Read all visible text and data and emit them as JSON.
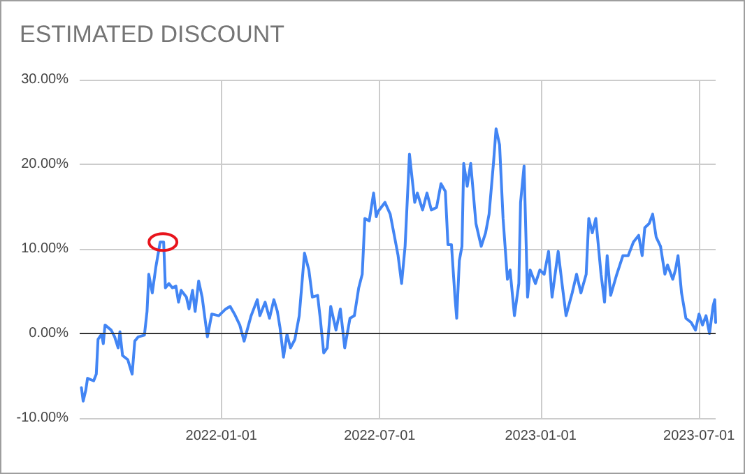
{
  "chart_data": {
    "type": "line",
    "title": "ESTIMATED DISCOUNT",
    "x": [
      "2021-07-25",
      "2021-07-27",
      "2021-07-30",
      "2021-08-01",
      "2021-08-08",
      "2021-08-11",
      "2021-08-13",
      "2021-08-17",
      "2021-08-19",
      "2021-08-21",
      "2021-08-28",
      "2021-09-01",
      "2021-09-05",
      "2021-09-07",
      "2021-09-10",
      "2021-09-16",
      "2021-09-21",
      "2021-09-24",
      "2021-09-28",
      "2021-10-05",
      "2021-10-08",
      "2021-10-10",
      "2021-10-14",
      "2021-10-18",
      "2021-10-23",
      "2021-10-27",
      "2021-10-29",
      "2021-11-02",
      "2021-11-06",
      "2021-11-10",
      "2021-11-13",
      "2021-11-16",
      "2021-11-22",
      "2021-11-25",
      "2021-11-29",
      "2021-12-02",
      "2021-12-06",
      "2021-12-10",
      "2021-12-16",
      "2021-12-21",
      "2021-12-29",
      "2022-01-06",
      "2022-01-11",
      "2022-01-16",
      "2022-01-22",
      "2022-01-27",
      "2022-02-04",
      "2022-02-11",
      "2022-02-14",
      "2022-02-20",
      "2022-02-25",
      "2022-03-02",
      "2022-03-06",
      "2022-03-09",
      "2022-03-13",
      "2022-03-17",
      "2022-03-21",
      "2022-03-26",
      "2022-03-31",
      "2022-04-06",
      "2022-04-11",
      "2022-04-15",
      "2022-04-21",
      "2022-04-24",
      "2022-04-28",
      "2022-05-02",
      "2022-05-06",
      "2022-05-12",
      "2022-05-17",
      "2022-05-22",
      "2022-05-28",
      "2022-06-02",
      "2022-06-07",
      "2022-06-11",
      "2022-06-14",
      "2022-06-19",
      "2022-06-24",
      "2022-06-27",
      "2022-06-29",
      "2022-07-07",
      "2022-07-13",
      "2022-07-18",
      "2022-07-22",
      "2022-07-26",
      "2022-07-30",
      "2022-08-04",
      "2022-08-10",
      "2022-08-13",
      "2022-08-19",
      "2022-08-24",
      "2022-08-29",
      "2022-09-04",
      "2022-09-09",
      "2022-09-14",
      "2022-09-17",
      "2022-09-21",
      "2022-09-25",
      "2022-09-27",
      "2022-09-30",
      "2022-10-03",
      "2022-10-05",
      "2022-10-09",
      "2022-10-13",
      "2022-10-19",
      "2022-10-25",
      "2022-10-30",
      "2022-11-03",
      "2022-11-08",
      "2022-11-11",
      "2022-11-15",
      "2022-11-19",
      "2022-11-24",
      "2022-11-27",
      "2022-12-02",
      "2022-12-07",
      "2022-12-09",
      "2022-12-13",
      "2022-12-17",
      "2022-12-20",
      "2022-12-26",
      "2022-12-31",
      "2023-01-05",
      "2023-01-10",
      "2023-01-14",
      "2023-01-21",
      "2023-01-26",
      "2023-01-30",
      "2023-02-06",
      "2023-02-11",
      "2023-02-16",
      "2023-02-22",
      "2023-02-25",
      "2023-03-01",
      "2023-03-05",
      "2023-03-11",
      "2023-03-15",
      "2023-03-18",
      "2023-03-22",
      "2023-03-29",
      "2023-04-05",
      "2023-04-11",
      "2023-04-17",
      "2023-04-23",
      "2023-04-27",
      "2023-04-30",
      "2023-05-05",
      "2023-05-09",
      "2023-05-13",
      "2023-05-18",
      "2023-05-23",
      "2023-05-26",
      "2023-06-01",
      "2023-06-04",
      "2023-06-07",
      "2023-06-11",
      "2023-06-16",
      "2023-06-22",
      "2023-06-27",
      "2023-07-01",
      "2023-07-05",
      "2023-07-09",
      "2023-07-13",
      "2023-07-17",
      "2023-07-19",
      "2023-07-20"
    ],
    "series": [
      {
        "color": "#4285f4",
        "values": [
          -6.4,
          -8.0,
          -6.7,
          -5.3,
          -5.6,
          -4.8,
          -0.7,
          -0.1,
          -1.2,
          1.0,
          0.4,
          -0.4,
          -1.7,
          0.2,
          -2.6,
          -3.1,
          -4.8,
          -0.9,
          -0.4,
          -0.2,
          2.6,
          7.0,
          4.8,
          7.8,
          10.8,
          10.8,
          5.4,
          5.9,
          5.4,
          5.6,
          3.7,
          5.1,
          4.3,
          2.9,
          5.1,
          2.6,
          6.2,
          4.3,
          -0.4,
          2.3,
          2.1,
          2.9,
          3.2,
          2.3,
          1.0,
          -0.9,
          2.1,
          4.0,
          2.1,
          3.7,
          1.8,
          4.0,
          2.6,
          0.7,
          -2.8,
          -0.1,
          -1.7,
          -0.7,
          2.1,
          9.5,
          7.5,
          4.3,
          4.5,
          1.8,
          -2.3,
          -1.7,
          3.2,
          0.4,
          2.9,
          -1.7,
          1.8,
          2.1,
          5.4,
          7.0,
          13.6,
          13.3,
          16.6,
          13.8,
          14.4,
          15.5,
          14.1,
          11.4,
          9.2,
          5.9,
          10.3,
          21.2,
          15.5,
          16.6,
          14.6,
          16.6,
          14.6,
          14.9,
          17.7,
          16.8,
          10.5,
          10.5,
          4.3,
          1.8,
          8.6,
          10.3,
          20.1,
          17.4,
          20.1,
          13.0,
          10.3,
          11.9,
          14.1,
          20.1,
          24.2,
          22.3,
          13.6,
          6.4,
          7.5,
          2.1,
          5.9,
          15.5,
          19.8,
          4.3,
          7.5,
          5.9,
          7.5,
          7.0,
          9.7,
          4.3,
          9.7,
          5.4,
          2.1,
          4.8,
          7.0,
          4.8,
          7.0,
          13.6,
          11.9,
          13.6,
          7.0,
          3.7,
          9.2,
          4.5,
          7.0,
          9.2,
          9.2,
          10.8,
          11.6,
          9.2,
          12.5,
          13.0,
          14.1,
          11.4,
          10.3,
          7.0,
          8.1,
          6.4,
          7.5,
          9.2,
          4.8,
          1.8,
          1.3,
          0.4,
          2.3,
          1.0,
          2.1,
          0.0,
          3.2,
          4.0,
          1.3
        ]
      }
    ],
    "xlim": [
      "2021-07-23",
      "2023-07-20"
    ],
    "xticks": [
      "2022-01-01",
      "2022-07-01",
      "2023-01-01",
      "2023-07-01"
    ],
    "ylim": [
      -10,
      30
    ],
    "yticks": [
      {
        "value": -10,
        "label": "-10.00%"
      },
      {
        "value": 0,
        "label": "0.00%"
      },
      {
        "value": 10,
        "label": "10.00%"
      },
      {
        "value": 20,
        "label": "20.00%"
      },
      {
        "value": 30,
        "label": "30.00%"
      }
    ],
    "ref_lines": [
      {
        "axis": "y",
        "value": 0,
        "color": "#333333"
      }
    ],
    "grid": true,
    "marker": "none",
    "line_style": "solid"
  }
}
